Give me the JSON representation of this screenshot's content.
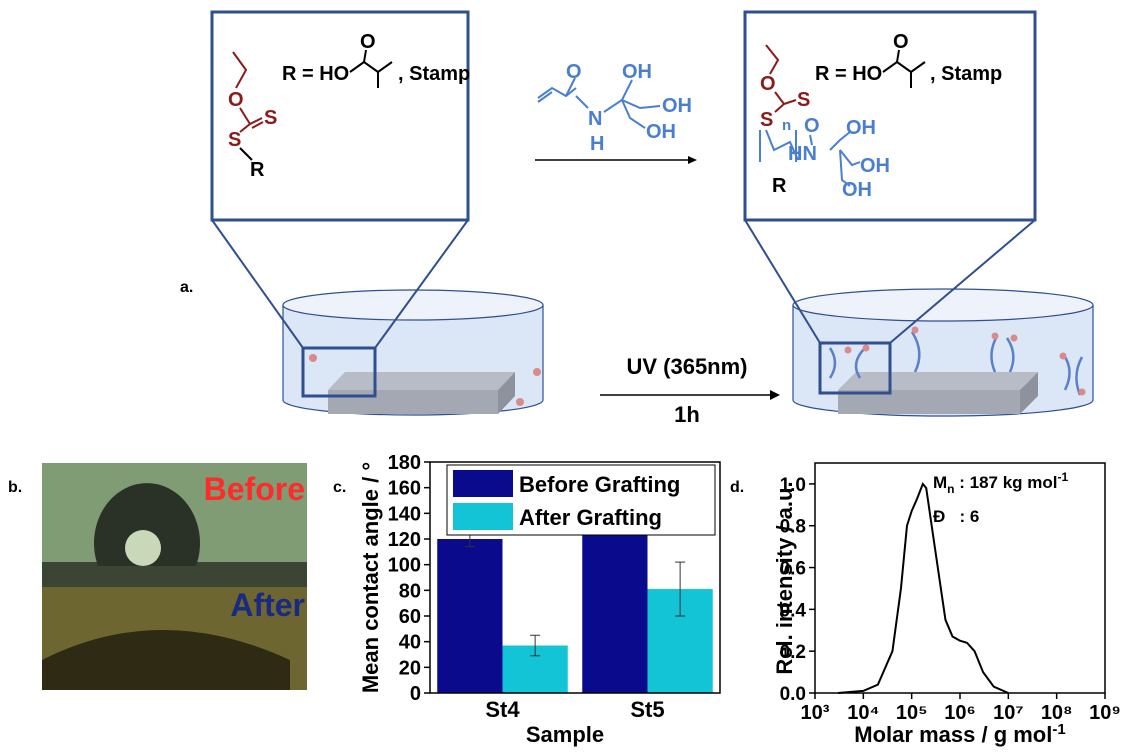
{
  "panel_a": {
    "label": "a.",
    "left_box": {
      "atoms": [
        "O",
        "S",
        "S",
        "R"
      ],
      "r_def": "R = HO",
      "r_carbonyl": "O",
      "stamp": ", Stamp"
    },
    "reagent": {
      "atoms": [
        "O",
        "N",
        "H",
        "OH",
        "OH",
        "OH"
      ]
    },
    "right_box": {
      "atoms": [
        "O",
        "S",
        "S",
        "R"
      ],
      "repeat": "n",
      "monomer": [
        "O",
        "HN",
        "OH",
        "OH",
        "OH"
      ],
      "r_def": "R = HO",
      "r_carbonyl": "O",
      "stamp": ", Stamp"
    },
    "uv_condition": "UV (365nm)",
    "time": "1h"
  },
  "panel_b": {
    "label": "b.",
    "before": "Before",
    "after": "After"
  },
  "chart_data": [
    {
      "type": "bar",
      "label": "c.",
      "ylabel": "Mean contact angle / °",
      "xlabel": "Sample",
      "categories": [
        "St4",
        "St5"
      ],
      "series": [
        {
          "name": "Before Grafting",
          "color": "#0a0a8c",
          "values": [
            120,
            125
          ],
          "errors": [
            6,
            1
          ]
        },
        {
          "name": "After Grafting",
          "color": "#12c4d6",
          "values": [
            37,
            81
          ],
          "errors": [
            8,
            21
          ]
        }
      ],
      "ylim": [
        0,
        180
      ],
      "yticks": [
        0,
        20,
        40,
        60,
        80,
        100,
        120,
        140,
        160,
        180
      ],
      "legend": "upper left"
    },
    {
      "type": "line",
      "label": "d.",
      "ylabel": "Rel. intensity / a.u.",
      "xlabel": "Molar mass / g mol",
      "xlabel_exponent": "-1",
      "log_x": true,
      "color": "#000000",
      "x": [
        3000,
        10000,
        20000,
        40000,
        60000,
        80000,
        100000,
        130000,
        170000,
        200000,
        300000,
        500000,
        700000,
        1000000,
        1400000,
        2000000,
        3000000,
        5000000,
        10000000
      ],
      "values": [
        0,
        0.01,
        0.04,
        0.2,
        0.5,
        0.8,
        0.87,
        0.93,
        1.0,
        0.98,
        0.7,
        0.35,
        0.27,
        0.25,
        0.24,
        0.2,
        0.1,
        0.03,
        0
      ],
      "xlim": [
        1000,
        1000000000
      ],
      "xticks": [
        {
          "value": 1000,
          "label": "10³"
        },
        {
          "value": 10000,
          "label": "10⁴"
        },
        {
          "value": 100000,
          "label": "10⁵"
        },
        {
          "value": 1000000,
          "label": "10⁶"
        },
        {
          "value": 10000000,
          "label": "10⁷"
        },
        {
          "value": 100000000,
          "label": "10⁸"
        },
        {
          "value": 1000000000,
          "label": "10⁹"
        }
      ],
      "ylim": [
        0,
        1.1
      ],
      "yticks": [
        {
          "value": 0,
          "label": "0.0"
        },
        0.2,
        0.4,
        0.6,
        0.8,
        {
          "value": 1,
          "label": "1.0"
        }
      ],
      "annotations": {
        "mn_symbol": "M",
        "mn_subscript": "n",
        "mn_value": " : 187 kg mol",
        "mn_exponent": "-1",
        "dispersity_symbol": "Đ",
        "dispersity_value": "   : 6"
      }
    }
  ]
}
